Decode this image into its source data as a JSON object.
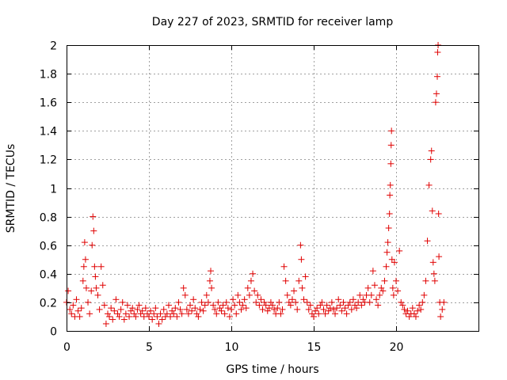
{
  "chart_data": {
    "type": "scatter",
    "title": "Day 227 of 2023, SRMTID for receiver lamp",
    "xlabel": "GPS time / hours",
    "ylabel": "SRMTID / TECUs",
    "xlim": [
      0,
      25
    ],
    "ylim": [
      0,
      2
    ],
    "xticks": [
      0,
      5,
      10,
      15,
      20
    ],
    "xtick_labels": [
      "0",
      "5",
      "10",
      "15",
      "20"
    ],
    "yticks": [
      0,
      0.2,
      0.4,
      0.6,
      0.8,
      1,
      1.2,
      1.4,
      1.6,
      1.8,
      2
    ],
    "ytick_labels": [
      "0",
      "0.2",
      "0.4",
      "0.6",
      "0.8",
      "1",
      "1.2",
      "1.4",
      "1.6",
      "1.8",
      "2"
    ],
    "grid": true,
    "marker": "+",
    "series": [
      {
        "name": "SRMTID",
        "color": "#e00000",
        "x": [
          0.0,
          0.1,
          0.2,
          0.3,
          0.4,
          0.5,
          0.6,
          0.7,
          0.8,
          0.9,
          1.0,
          1.05,
          1.1,
          1.15,
          1.2,
          1.3,
          1.4,
          1.5,
          1.55,
          1.6,
          1.65,
          1.7,
          1.75,
          1.8,
          1.9,
          2.0,
          2.1,
          2.2,
          2.3,
          2.4,
          2.5,
          2.6,
          2.7,
          2.8,
          2.9,
          3.0,
          3.1,
          3.2,
          3.3,
          3.4,
          3.5,
          3.6,
          3.7,
          3.8,
          3.9,
          4.0,
          4.1,
          4.2,
          4.3,
          4.4,
          4.5,
          4.6,
          4.7,
          4.8,
          4.9,
          5.0,
          5.1,
          5.2,
          5.3,
          5.4,
          5.5,
          5.6,
          5.7,
          5.8,
          5.9,
          6.0,
          6.1,
          6.2,
          6.3,
          6.4,
          6.5,
          6.6,
          6.7,
          6.8,
          6.9,
          7.0,
          7.1,
          7.2,
          7.3,
          7.4,
          7.5,
          7.6,
          7.7,
          7.8,
          7.9,
          8.0,
          8.1,
          8.2,
          8.3,
          8.4,
          8.5,
          8.6,
          8.7,
          8.75,
          8.8,
          8.9,
          9.0,
          9.1,
          9.2,
          9.3,
          9.4,
          9.5,
          9.6,
          9.7,
          9.8,
          9.9,
          10.0,
          10.1,
          10.2,
          10.3,
          10.4,
          10.5,
          10.6,
          10.7,
          10.8,
          10.9,
          11.0,
          11.1,
          11.2,
          11.3,
          11.4,
          11.5,
          11.6,
          11.7,
          11.8,
          11.9,
          12.0,
          12.1,
          12.2,
          12.3,
          12.4,
          12.5,
          12.6,
          12.7,
          12.8,
          12.9,
          13.0,
          13.1,
          13.2,
          13.3,
          13.4,
          13.5,
          13.6,
          13.7,
          13.8,
          13.9,
          14.0,
          14.1,
          14.2,
          14.25,
          14.3,
          14.4,
          14.5,
          14.6,
          14.7,
          14.8,
          14.9,
          15.0,
          15.1,
          15.2,
          15.3,
          15.4,
          15.5,
          15.6,
          15.7,
          15.8,
          15.9,
          16.0,
          16.1,
          16.2,
          16.3,
          16.4,
          16.5,
          16.6,
          16.7,
          16.8,
          16.9,
          17.0,
          17.1,
          17.2,
          17.3,
          17.4,
          17.5,
          17.6,
          17.7,
          17.8,
          17.9,
          18.0,
          18.1,
          18.2,
          18.3,
          18.4,
          18.5,
          18.6,
          18.7,
          18.8,
          18.9,
          19.0,
          19.1,
          19.2,
          19.3,
          19.4,
          19.45,
          19.5,
          19.55,
          19.6,
          19.62,
          19.65,
          19.68,
          19.7,
          19.72,
          19.75,
          19.8,
          19.85,
          19.9,
          20.0,
          20.1,
          20.2,
          20.3,
          20.4,
          20.5,
          20.6,
          20.7,
          20.8,
          20.9,
          21.0,
          21.1,
          21.2,
          21.3,
          21.4,
          21.5,
          21.6,
          21.7,
          21.8,
          21.9,
          22.0,
          22.1,
          22.15,
          22.2,
          22.25,
          22.3,
          22.35,
          22.4,
          22.45,
          22.5,
          22.52,
          22.55,
          22.58,
          22.6,
          22.65,
          22.7,
          22.8,
          22.9
        ],
        "y": [
          0.2,
          0.28,
          0.15,
          0.12,
          0.18,
          0.1,
          0.22,
          0.14,
          0.1,
          0.16,
          0.35,
          0.45,
          0.62,
          0.5,
          0.3,
          0.2,
          0.12,
          0.28,
          0.6,
          0.8,
          0.7,
          0.45,
          0.38,
          0.3,
          0.25,
          0.15,
          0.45,
          0.32,
          0.18,
          0.05,
          0.12,
          0.1,
          0.16,
          0.08,
          0.14,
          0.22,
          0.12,
          0.1,
          0.15,
          0.2,
          0.08,
          0.12,
          0.18,
          0.1,
          0.14,
          0.16,
          0.12,
          0.1,
          0.15,
          0.18,
          0.12,
          0.14,
          0.1,
          0.16,
          0.12,
          0.1,
          0.14,
          0.08,
          0.12,
          0.16,
          0.1,
          0.05,
          0.12,
          0.08,
          0.15,
          0.1,
          0.12,
          0.18,
          0.1,
          0.14,
          0.12,
          0.16,
          0.1,
          0.2,
          0.15,
          0.12,
          0.3,
          0.25,
          0.15,
          0.12,
          0.18,
          0.14,
          0.22,
          0.16,
          0.12,
          0.1,
          0.15,
          0.2,
          0.14,
          0.18,
          0.25,
          0.2,
          0.35,
          0.42,
          0.3,
          0.18,
          0.15,
          0.12,
          0.2,
          0.16,
          0.14,
          0.18,
          0.12,
          0.2,
          0.16,
          0.1,
          0.15,
          0.22,
          0.18,
          0.12,
          0.25,
          0.2,
          0.15,
          0.18,
          0.22,
          0.16,
          0.3,
          0.25,
          0.35,
          0.4,
          0.28,
          0.2,
          0.25,
          0.18,
          0.22,
          0.15,
          0.2,
          0.18,
          0.14,
          0.16,
          0.2,
          0.18,
          0.15,
          0.12,
          0.16,
          0.2,
          0.12,
          0.15,
          0.45,
          0.35,
          0.25,
          0.2,
          0.18,
          0.22,
          0.28,
          0.2,
          0.15,
          0.35,
          0.6,
          0.5,
          0.3,
          0.22,
          0.38,
          0.2,
          0.15,
          0.18,
          0.12,
          0.1,
          0.14,
          0.16,
          0.12,
          0.18,
          0.2,
          0.15,
          0.12,
          0.18,
          0.14,
          0.16,
          0.2,
          0.15,
          0.12,
          0.16,
          0.22,
          0.18,
          0.14,
          0.2,
          0.16,
          0.12,
          0.18,
          0.2,
          0.15,
          0.22,
          0.18,
          0.16,
          0.2,
          0.25,
          0.18,
          0.22,
          0.2,
          0.25,
          0.3,
          0.2,
          0.25,
          0.42,
          0.32,
          0.22,
          0.18,
          0.25,
          0.3,
          0.28,
          0.35,
          0.45,
          0.55,
          0.62,
          0.72,
          0.82,
          0.95,
          1.02,
          1.17,
          1.3,
          1.4,
          0.5,
          0.3,
          0.25,
          0.48,
          0.35,
          0.28,
          0.56,
          0.2,
          0.18,
          0.15,
          0.12,
          0.14,
          0.1,
          0.12,
          0.16,
          0.12,
          0.1,
          0.14,
          0.18,
          0.15,
          0.2,
          0.25,
          0.35,
          0.63,
          1.02,
          1.2,
          1.26,
          0.84,
          0.48,
          0.4,
          0.35,
          1.6,
          1.66,
          1.78,
          1.95,
          2.0,
          0.82,
          0.52,
          0.2,
          0.1,
          0.15,
          0.2
        ]
      }
    ]
  }
}
